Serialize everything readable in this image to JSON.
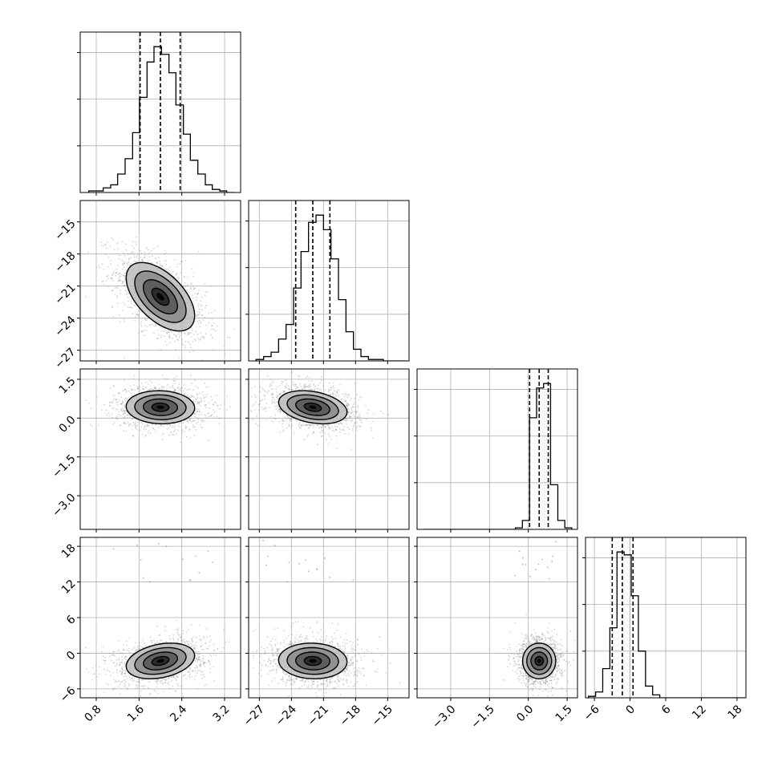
{
  "chart_data": {
    "type": "corner",
    "title": "",
    "n_params": 4,
    "quantile_levels": [
      0.16,
      0.5,
      0.84
    ],
    "params": [
      {
        "label": "",
        "range": [
          0.5,
          3.5
        ],
        "ticks": [
          0.8,
          1.6,
          2.4,
          3.2
        ],
        "tick_labels": [
          "0.8",
          "1.6",
          "2.4",
          "3.2"
        ],
        "quantiles": [
          1.62,
          2.0,
          2.37
        ],
        "hist_bins": [
          0.66,
          0.8,
          0.93,
          1.07,
          1.2,
          1.34,
          1.48,
          1.61,
          1.75,
          1.88,
          2.02,
          2.16,
          2.29,
          2.43,
          2.56,
          2.7,
          2.84,
          2.97,
          3.11,
          3.24,
          3.38
        ],
        "hist_counts": [
          1,
          1,
          3,
          5,
          12,
          22,
          39,
          62,
          85,
          95,
          90,
          78,
          57,
          38,
          21,
          12,
          5,
          2,
          1,
          0
        ]
      },
      {
        "label": "",
        "range": [
          -28.0,
          -13.0
        ],
        "ticks": [
          -27,
          -24,
          -21,
          -18,
          -15
        ],
        "tick_labels": [
          "−27",
          "−24",
          "−21",
          "−18",
          "−15"
        ],
        "quantiles": [
          -23.6,
          -22.0,
          -20.4
        ],
        "hist_bins": [
          -27.3,
          -26.6,
          -25.9,
          -25.2,
          -24.5,
          -23.8,
          -23.1,
          -22.4,
          -21.7,
          -21.0,
          -20.3,
          -19.6,
          -18.9,
          -18.2,
          -17.5,
          -16.8,
          -16.1,
          -15.4,
          -14.7,
          -14.0,
          -13.3
        ],
        "hist_counts": [
          1,
          3,
          6,
          15,
          25,
          50,
          75,
          95,
          100,
          90,
          70,
          42,
          20,
          8,
          3,
          1,
          1,
          0,
          0,
          0
        ]
      },
      {
        "label": "",
        "range": [
          -4.3,
          1.9
        ],
        "ticks": [
          -3.0,
          -1.5,
          0.0,
          1.5
        ],
        "tick_labels": [
          "−3.0",
          "−1.5",
          "0.0",
          "1.5"
        ],
        "quantiles": [
          0.05,
          0.42,
          0.77
        ],
        "hist_bins": [
          -4.05,
          -3.77,
          -3.5,
          -3.23,
          -2.95,
          -2.68,
          -2.41,
          -2.14,
          -1.86,
          -1.59,
          -1.32,
          -1.05,
          -0.77,
          -0.5,
          -0.23,
          0.05,
          0.32,
          0.59,
          0.86,
          1.14,
          1.41,
          1.68
        ],
        "hist_counts": [
          0,
          0,
          0,
          0,
          0,
          0,
          0,
          0,
          0,
          0,
          0,
          0,
          0,
          1,
          6,
          75,
          95,
          98,
          30,
          6,
          1
        ]
      },
      {
        "label": "",
        "range": [
          -7.5,
          19.5
        ],
        "ticks": [
          -6,
          0,
          6,
          12,
          18
        ],
        "tick_labels": [
          "−6",
          "0",
          "6",
          "12",
          "18"
        ],
        "quantiles": [
          -3.0,
          -1.3,
          0.5
        ],
        "hist_bins": [
          -7.0,
          -5.8,
          -4.6,
          -3.4,
          -2.2,
          -1.0,
          0.2,
          1.4,
          2.6,
          3.8,
          5.0,
          6.2,
          7.4,
          8.6,
          9.8,
          11.0,
          12.2,
          13.4,
          14.6,
          15.8,
          17.0,
          18.2,
          19.4
        ],
        "hist_counts": [
          1,
          4,
          20,
          48,
          100,
          98,
          70,
          32,
          8,
          2,
          0,
          0,
          0,
          0,
          0,
          0,
          0,
          0,
          0,
          0,
          0,
          0
        ]
      }
    ],
    "correlations": [
      [
        1.0,
        -0.55,
        -0.05,
        0.3
      ],
      [
        -0.55,
        1.0,
        -0.3,
        -0.05
      ],
      [
        -0.05,
        -0.3,
        1.0,
        0.0
      ],
      [
        0.3,
        -0.05,
        0.0,
        1.0
      ]
    ],
    "sigmas": [
      0.32,
      1.6,
      0.32,
      1.5
    ],
    "means": [
      2.0,
      -22.0,
      0.42,
      -1.3
    ],
    "contour_sigma_levels": [
      0.5,
      1.0,
      1.5,
      2.0
    ],
    "grid": true,
    "colors": {
      "line": "#000000",
      "grid": "#b0b0b0",
      "points": "#888888"
    }
  }
}
